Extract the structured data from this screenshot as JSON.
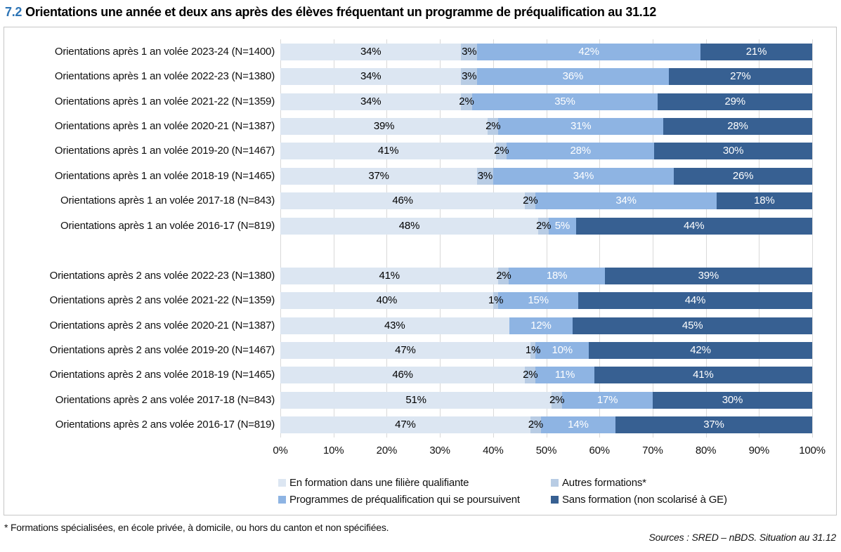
{
  "title": {
    "number": "7.2",
    "number_color": "#2E75B6",
    "text": "Orientations une année et deux ans après des élèves fréquentant un programme de préqualification au 31.12"
  },
  "footnote": "* Formations spécialisées, en école privée, à domicile, ou hors du canton et non spécifiées.",
  "source": "Sources : SRED – nBDS. Situation au 31.12",
  "chart_data": {
    "type": "bar",
    "orientation": "horizontal-stacked",
    "xlim": [
      0,
      100
    ],
    "grid": true,
    "gridline_color": "#d9d9d9",
    "x_ticks": [
      "0%",
      "10%",
      "20%",
      "30%",
      "40%",
      "50%",
      "60%",
      "70%",
      "80%",
      "90%",
      "100%"
    ],
    "series": [
      {
        "name": "En formation dans une filière qualifiante",
        "color": "#DCE6F2",
        "label_color": "#000000"
      },
      {
        "name": "Autres formations*",
        "color": "#B8CCE4",
        "label_color": "#000000"
      },
      {
        "name": "Programmes de préqualification qui se poursuivent",
        "color": "#8EB4E3",
        "label_color": "#FFFFFF"
      },
      {
        "name": "Sans formation (non scolarisé à GE)",
        "color": "#376092",
        "label_color": "#FFFFFF"
      }
    ],
    "legend_position": "bottom",
    "groups": [
      {
        "name": "après 1 an",
        "rows": [
          {
            "label": "Orientations après 1 an volée 2023-24 (N=1400)",
            "values": [
              34,
              3,
              42,
              21
            ],
            "labels": [
              "34%",
              "3%",
              "42%",
              "21%"
            ]
          },
          {
            "label": "Orientations après 1 an volée 2022-23 (N=1380)",
            "values": [
              34,
              3,
              36,
              27
            ],
            "labels": [
              "34%",
              "3%",
              "36%",
              "27%"
            ]
          },
          {
            "label": "Orientations après 1 an volée 2021-22 (N=1359)",
            "values": [
              34,
              2,
              35,
              29
            ],
            "labels": [
              "34%",
              "2%",
              "35%",
              "29%"
            ]
          },
          {
            "label": "Orientations après 1 an volée 2020-21 (N=1387)",
            "values": [
              39,
              2,
              31,
              28
            ],
            "labels": [
              "39%",
              "2%",
              "31%",
              "28%"
            ]
          },
          {
            "label": "Orientations après 1 an volée 2019-20 (N=1467)",
            "values": [
              41,
              2,
              28,
              30
            ],
            "labels": [
              "41%",
              "2%",
              "28%",
              "30%"
            ]
          },
          {
            "label": "Orientations après 1 an volée 2018-19 (N=1465)",
            "values": [
              37,
              3,
              34,
              26
            ],
            "labels": [
              "37%",
              "3%",
              "34%",
              "26%"
            ]
          },
          {
            "label": "Orientations après 1 an volée 2017-18 (N=843)",
            "values": [
              46,
              2,
              34,
              18
            ],
            "labels": [
              "46%",
              "2%",
              "34%",
              "18%"
            ]
          },
          {
            "label": "Orientations après 1 an volée 2016-17 (N=819)",
            "values": [
              48,
              2,
              5,
              44
            ],
            "labels": [
              "48%",
              "2%",
              "5%",
              "44%"
            ]
          }
        ]
      },
      {
        "name": "après 2 ans",
        "rows": [
          {
            "label": "Orientations après 2 ans volée 2022-23 (N=1380)",
            "values": [
              41,
              2,
              18,
              39
            ],
            "labels": [
              "41%",
              "2%",
              "18%",
              "39%"
            ]
          },
          {
            "label": "Orientations après 2 ans volée 2021-22 (N=1359)",
            "values": [
              40,
              1,
              15,
              44
            ],
            "labels": [
              "40%",
              "1%",
              "15%",
              "44%"
            ]
          },
          {
            "label": "Orientations après 2 ans volée 2020-21 (N=1387)",
            "values": [
              43,
              0,
              12,
              45
            ],
            "labels": [
              "43%",
              "",
              "12%",
              "45%"
            ]
          },
          {
            "label": "Orientations après 2 ans volée 2019-20 (N=1467)",
            "values": [
              47,
              1,
              10,
              42
            ],
            "labels": [
              "47%",
              "1%",
              "10%",
              "42%"
            ]
          },
          {
            "label": "Orientations après 2 ans volée 2018-19 (N=1465)",
            "values": [
              46,
              2,
              11,
              41
            ],
            "labels": [
              "46%",
              "2%",
              "11%",
              "41%"
            ]
          },
          {
            "label": "Orientations après 2 ans volée 2017-18 (N=843)",
            "values": [
              51,
              2,
              17,
              30
            ],
            "labels": [
              "51%",
              "2%",
              "17%",
              "30%"
            ]
          },
          {
            "label": "Orientations après 2 ans volée 2016-17 (N=819)",
            "values": [
              47,
              2,
              14,
              37
            ],
            "labels": [
              "47%",
              "2%",
              "14%",
              "37%"
            ]
          }
        ]
      }
    ]
  }
}
